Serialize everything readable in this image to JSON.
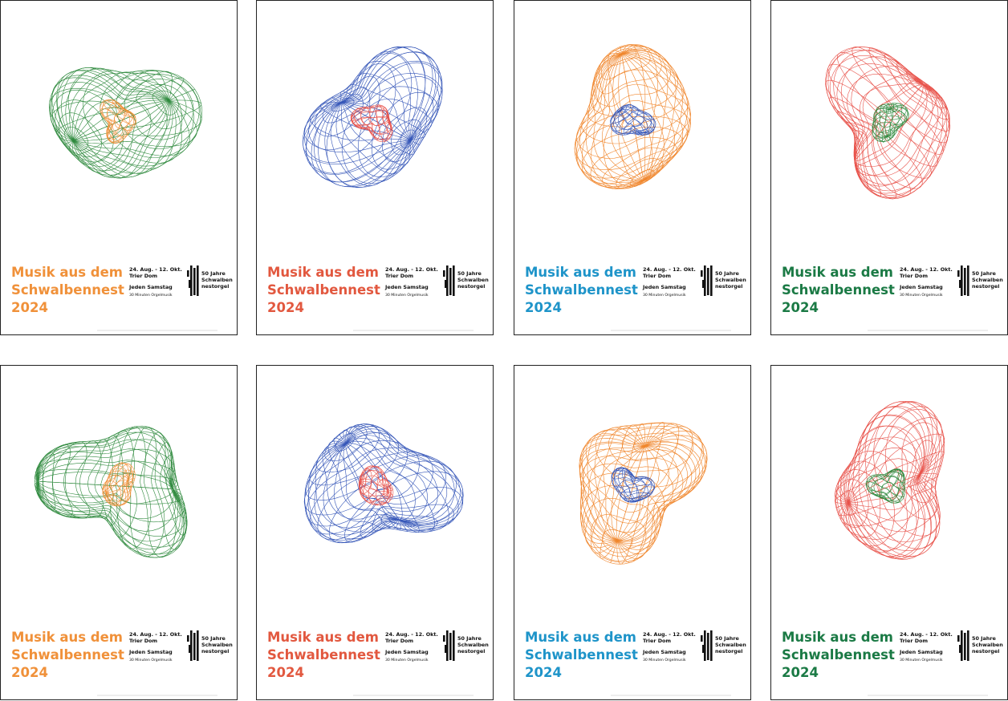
{
  "poster_text": {
    "title": [
      "Musik aus dem",
      "Schwalbennest",
      "2024"
    ],
    "dates": "24. Aug. - 12. Okt.",
    "place": "Trier Dom",
    "schedule": "Jeden Samstag",
    "duration": "30 Minuten Orgelmusik",
    "logo": [
      "50 Jahre",
      "Schwalben",
      "nestorgel"
    ]
  },
  "posters": [
    {
      "title_color": "#f0913a",
      "outer_color": "#2f8a3e",
      "inner_color": "#f0913a"
    },
    {
      "title_color": "#e2583f",
      "outer_color": "#3556b8",
      "inner_color": "#e8524a"
    },
    {
      "title_color": "#1e94c9",
      "outer_color": "#f0862c",
      "inner_color": "#3556b8"
    },
    {
      "title_color": "#1b7a45",
      "outer_color": "#e8524a",
      "inner_color": "#2f8a3e"
    },
    {
      "title_color": "#f0913a",
      "outer_color": "#2f8a3e",
      "inner_color": "#f0913a"
    },
    {
      "title_color": "#e2583f",
      "outer_color": "#3556b8",
      "inner_color": "#e8524a"
    },
    {
      "title_color": "#1e94c9",
      "outer_color": "#f0862c",
      "inner_color": "#3556b8"
    },
    {
      "title_color": "#1b7a45",
      "outer_color": "#e8524a",
      "inner_color": "#2f8a3e"
    }
  ]
}
